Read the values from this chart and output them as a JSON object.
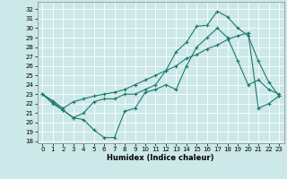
{
  "title": "",
  "xlabel": "Humidex (Indice chaleur)",
  "bg_color": "#cce8e8",
  "line_color": "#1a7a6e",
  "grid_color": "#b0d8d8",
  "xlim": [
    -0.5,
    23.5
  ],
  "ylim": [
    17.8,
    32.8
  ],
  "xticks": [
    0,
    1,
    2,
    3,
    4,
    5,
    6,
    7,
    8,
    9,
    10,
    11,
    12,
    13,
    14,
    15,
    16,
    17,
    18,
    19,
    20,
    21,
    22,
    23
  ],
  "yticks": [
    18,
    19,
    20,
    21,
    22,
    23,
    24,
    25,
    26,
    27,
    28,
    29,
    30,
    31,
    32
  ],
  "series1": [
    23.0,
    22.0,
    21.3,
    20.5,
    20.3,
    19.2,
    18.4,
    18.4,
    21.2,
    21.5,
    23.2,
    23.5,
    24.0,
    23.5,
    26.0,
    28.0,
    29.0,
    30.0,
    29.0,
    26.5,
    24.0,
    24.5,
    23.5,
    23.0
  ],
  "series2": [
    23.0,
    22.2,
    21.3,
    20.5,
    21.0,
    22.2,
    22.5,
    22.5,
    23.0,
    23.0,
    23.5,
    24.0,
    25.5,
    27.5,
    28.5,
    30.2,
    30.3,
    31.8,
    31.2,
    30.0,
    29.2,
    26.5,
    24.3,
    22.8
  ],
  "series3": [
    23.0,
    22.3,
    21.5,
    22.2,
    22.5,
    22.8,
    23.0,
    23.2,
    23.5,
    24.0,
    24.5,
    25.0,
    25.5,
    26.0,
    26.8,
    27.2,
    27.8,
    28.2,
    28.8,
    29.2,
    29.5,
    21.5,
    22.0,
    22.8
  ]
}
